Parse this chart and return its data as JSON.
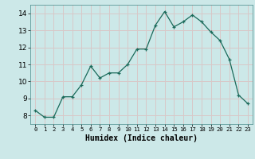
{
  "x": [
    0,
    1,
    2,
    3,
    4,
    5,
    6,
    7,
    8,
    9,
    10,
    11,
    12,
    13,
    14,
    15,
    16,
    17,
    18,
    19,
    20,
    21,
    22,
    23
  ],
  "y": [
    8.3,
    7.9,
    7.9,
    9.1,
    9.1,
    9.8,
    10.9,
    10.2,
    10.5,
    10.5,
    11.0,
    11.9,
    11.9,
    13.3,
    14.1,
    13.2,
    13.5,
    13.9,
    13.5,
    12.9,
    12.4,
    11.3,
    9.2,
    8.7
  ],
  "xlabel": "Humidex (Indice chaleur)",
  "bg_color": "#cce8e8",
  "grid_color": "#d8c8c8",
  "line_color": "#1a6a5a",
  "xlim": [
    -0.5,
    23.5
  ],
  "ylim": [
    7.5,
    14.5
  ],
  "yticks": [
    8,
    9,
    10,
    11,
    12,
    13,
    14
  ],
  "xtick_labels": [
    "0",
    "1",
    "2",
    "3",
    "4",
    "5",
    "6",
    "7",
    "8",
    "9",
    "10",
    "11",
    "12",
    "13",
    "14",
    "15",
    "16",
    "17",
    "18",
    "19",
    "20",
    "21",
    "22",
    "23"
  ]
}
